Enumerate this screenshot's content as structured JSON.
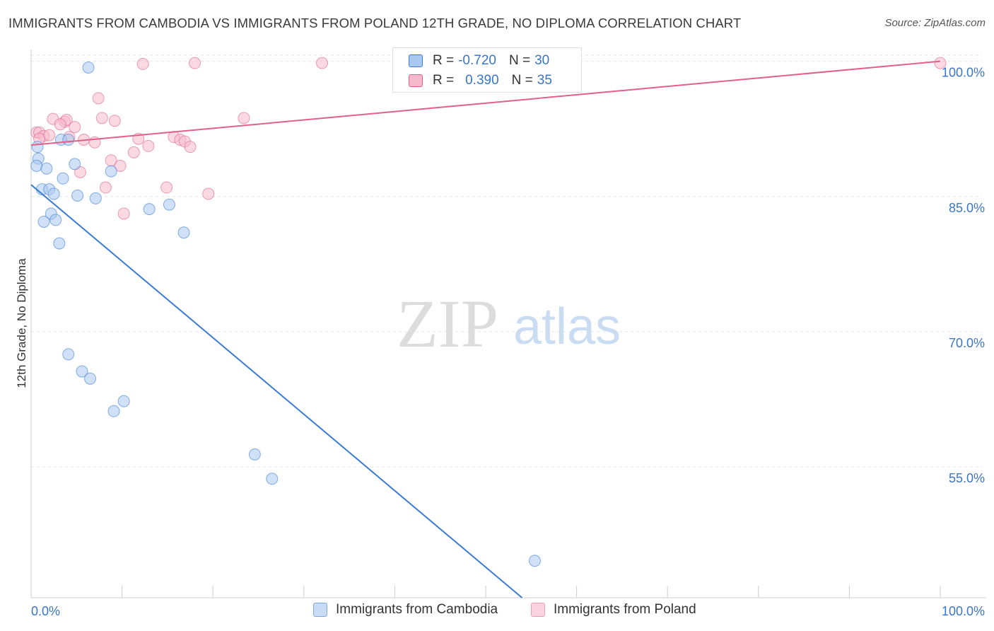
{
  "header": {
    "title": "IMMIGRANTS FROM CAMBODIA VS IMMIGRANTS FROM POLAND 12TH GRADE, NO DIPLOMA CORRELATION CHART",
    "source": "Source: ZipAtlas.com"
  },
  "watermark": {
    "zip": "ZIP",
    "atlas": "atlas"
  },
  "legend": {
    "rows": [
      {
        "r_label": "R =",
        "r_value": "-0.720",
        "n_label": "N =",
        "n_value": "30"
      },
      {
        "r_label": "R =",
        "r_value": "0.390",
        "n_label": "N =",
        "n_value": "35"
      }
    ]
  },
  "bottom_legend": {
    "cambodia": "Immigrants from Cambodia",
    "poland": "Immigrants from Poland"
  },
  "colors": {
    "blue": "#3a7bd5",
    "blue_fill": "#a9c8f0",
    "pink": "#e0608a",
    "pink_fill": "#f6b9cc",
    "tick_label": "#3a76c8",
    "grid": "#e3e3e3"
  },
  "chart_data": {
    "type": "scatter",
    "title": "IMMIGRANTS FROM CAMBODIA VS IMMIGRANTS FROM POLAND 12TH GRADE, NO DIPLOMA CORRELATION CHART",
    "xlabel": "",
    "ylabel": "12th Grade, No Diploma",
    "xlim": [
      0,
      100
    ],
    "ylim": [
      40.5,
      101.3
    ],
    "x_tick_labels": [
      "0.0%",
      "100.0%"
    ],
    "y_ticks": [
      55,
      70,
      85,
      100
    ],
    "y_tick_labels": [
      "55.0%",
      "70.0%",
      "85.0%",
      "100.0%"
    ],
    "grid": true,
    "legend_position": "top-center",
    "series": [
      {
        "name": "Immigrants from Cambodia",
        "color": "blue",
        "r": -0.72,
        "n": 30,
        "trend": {
          "x": [
            0,
            54
          ],
          "y": [
            86.3,
            40.5
          ]
        },
        "points": [
          [
            6.3,
            99.3
          ],
          [
            0.7,
            90.5
          ],
          [
            0.8,
            89.2
          ],
          [
            0.6,
            88.4
          ],
          [
            1.7,
            88.1
          ],
          [
            3.3,
            91.3
          ],
          [
            4.1,
            91.3
          ],
          [
            4.8,
            88.6
          ],
          [
            8.8,
            87.8
          ],
          [
            3.5,
            87.0
          ],
          [
            1.2,
            85.8
          ],
          [
            2.0,
            85.8
          ],
          [
            2.5,
            85.3
          ],
          [
            5.1,
            85.1
          ],
          [
            7.1,
            84.8
          ],
          [
            1.4,
            82.2
          ],
          [
            2.2,
            83.1
          ],
          [
            2.7,
            82.4
          ],
          [
            3.1,
            79.8
          ],
          [
            13.0,
            83.6
          ],
          [
            15.2,
            84.1
          ],
          [
            16.8,
            81.0
          ],
          [
            4.1,
            67.5
          ],
          [
            5.6,
            65.6
          ],
          [
            6.5,
            64.8
          ],
          [
            10.2,
            62.3
          ],
          [
            9.1,
            61.2
          ],
          [
            24.6,
            56.4
          ],
          [
            26.5,
            53.7
          ],
          [
            55.4,
            44.6
          ]
        ]
      },
      {
        "name": "Immigrants from Poland",
        "color": "pink",
        "r": 0.39,
        "n": 35,
        "trend": {
          "x": [
            0,
            100
          ],
          "y": [
            90.7,
            100.0
          ]
        },
        "points": [
          [
            12.3,
            99.7
          ],
          [
            18.0,
            99.8
          ],
          [
            32.0,
            99.8
          ],
          [
            100.0,
            99.8
          ],
          [
            7.4,
            95.9
          ],
          [
            7.8,
            93.7
          ],
          [
            9.2,
            93.4
          ],
          [
            23.4,
            93.7
          ],
          [
            2.4,
            93.6
          ],
          [
            3.7,
            93.3
          ],
          [
            3.9,
            93.5
          ],
          [
            3.2,
            93.0
          ],
          [
            4.8,
            92.7
          ],
          [
            0.6,
            92.1
          ],
          [
            0.9,
            92.1
          ],
          [
            1.4,
            91.7
          ],
          [
            2.0,
            91.8
          ],
          [
            0.9,
            91.4
          ],
          [
            4.2,
            91.6
          ],
          [
            5.8,
            91.3
          ],
          [
            7.0,
            91.0
          ],
          [
            11.8,
            91.4
          ],
          [
            15.7,
            91.6
          ],
          [
            16.4,
            91.3
          ],
          [
            16.9,
            91.1
          ],
          [
            12.9,
            90.6
          ],
          [
            17.5,
            90.5
          ],
          [
            11.3,
            89.9
          ],
          [
            8.8,
            89.0
          ],
          [
            9.8,
            88.4
          ],
          [
            5.4,
            87.7
          ],
          [
            8.2,
            86.0
          ],
          [
            14.9,
            86.0
          ],
          [
            19.5,
            85.3
          ],
          [
            10.2,
            83.1
          ]
        ]
      }
    ]
  }
}
